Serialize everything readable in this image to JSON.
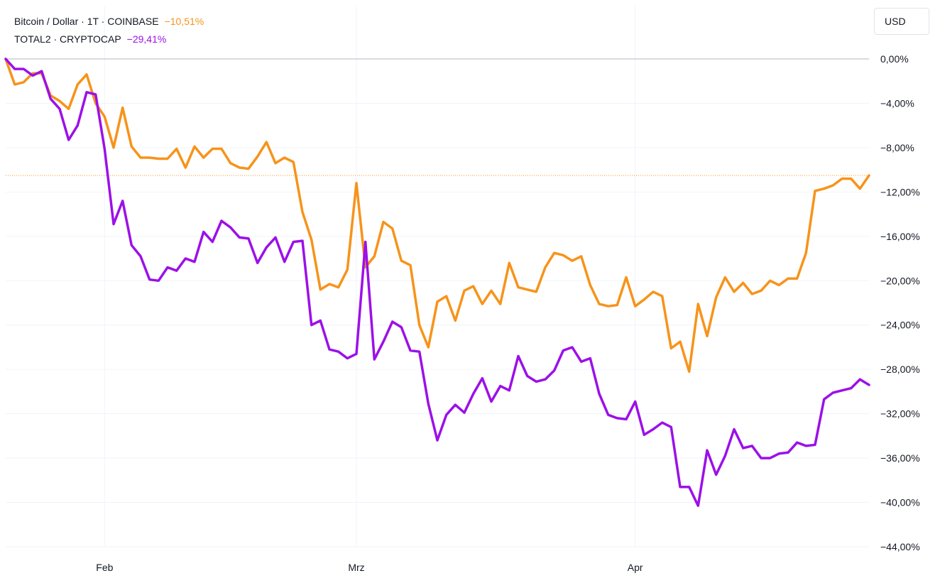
{
  "legend": {
    "series": [
      {
        "label": "Bitcoin / Dollar · 1T · COINBASE",
        "change": "−10,51%",
        "color": "#f7931a"
      },
      {
        "label": "TOTAL2 · CRYPTOCAP",
        "change": "−29,41%",
        "color": "#9c10e8"
      }
    ]
  },
  "toolbar": {
    "currency": "USD"
  },
  "colors": {
    "grid": "#f0f3fa",
    "zero_line": "#b2b5be",
    "axis_text": "#131722",
    "marker_line": "#f7931a"
  },
  "chart_data": {
    "type": "line",
    "y_unit": "%",
    "ylim": [
      -44,
      0
    ],
    "y_ticks": [
      0,
      -4,
      -8,
      -12,
      -16,
      -20,
      -24,
      -28,
      -32,
      -36,
      -40,
      -44
    ],
    "y_tick_labels": [
      "0,00%",
      "−4,00%",
      "−8,00%",
      "−12,00%",
      "−16,00%",
      "−20,00%",
      "−24,00%",
      "−28,00%",
      "−32,00%",
      "−36,00%",
      "−40,00%",
      "−44,00%"
    ],
    "x_ticks": [
      {
        "label": "Feb",
        "index": 11
      },
      {
        "label": "Mrz",
        "index": 39
      },
      {
        "label": "Apr",
        "index": 70
      }
    ],
    "grid": true,
    "last_value_line": -10.51,
    "series": [
      {
        "name": "Bitcoin / Dollar · 1T · COINBASE",
        "color": "#f7931a",
        "values": [
          0,
          -2.3,
          -2.1,
          -1.3,
          -1.3,
          -3.3,
          -3.8,
          -4.5,
          -2.3,
          -1.4,
          -4,
          -5.2,
          -8,
          -4.4,
          -7.9,
          -8.9,
          -8.9,
          -9,
          -9,
          -8.1,
          -9.8,
          -7.9,
          -8.9,
          -8.1,
          -8.1,
          -9.4,
          -9.8,
          -9.9,
          -8.8,
          -7.5,
          -9.4,
          -8.9,
          -9.3,
          -13.8,
          -16.3,
          -20.8,
          -20.3,
          -20.6,
          -19,
          -11.2,
          -18.8,
          -17.8,
          -14.7,
          -15.3,
          -18.2,
          -18.6,
          -24,
          -26,
          -21.9,
          -21.4,
          -23.6,
          -20.9,
          -20.5,
          -22.1,
          -20.9,
          -22.1,
          -18.4,
          -20.6,
          -20.8,
          -21,
          -18.8,
          -17.5,
          -17.7,
          -18.2,
          -17.8,
          -20.4,
          -22.1,
          -22.3,
          -22.2,
          -19.7,
          -22.3,
          -21.7,
          -21,
          -21.4,
          -26.1,
          -25.5,
          -28.2,
          -22.1,
          -25,
          -21.5,
          -19.7,
          -21,
          -20.2,
          -21.2,
          -20.9,
          -20,
          -20.4,
          -19.8,
          -19.8,
          -17.5,
          -11.9,
          -11.7,
          -11.4,
          -10.8,
          -10.8,
          -11.7,
          -10.51
        ]
      },
      {
        "name": "TOTAL2 · CRYPTOCAP",
        "color": "#9c10e8",
        "values": [
          0,
          -0.9,
          -0.9,
          -1.5,
          -1.1,
          -3.6,
          -4.5,
          -7.3,
          -6,
          -3,
          -3.2,
          -8.1,
          -14.9,
          -12.8,
          -16.8,
          -17.8,
          -19.9,
          -20,
          -18.8,
          -19.1,
          -18,
          -18.3,
          -15.6,
          -16.5,
          -14.6,
          -15.2,
          -16.1,
          -16.2,
          -18.4,
          -17,
          -16.1,
          -18.3,
          -16.5,
          -16.4,
          -24,
          -23.6,
          -26.2,
          -26.4,
          -27,
          -26.6,
          -16.5,
          -27.1,
          -25.5,
          -23.7,
          -24.2,
          -26.3,
          -26.4,
          -31.1,
          -34.4,
          -32.1,
          -31.2,
          -31.9,
          -30.2,
          -28.8,
          -30.9,
          -29.5,
          -29.9,
          -26.8,
          -28.6,
          -29.1,
          -28.9,
          -28.1,
          -26.3,
          -26,
          -27.3,
          -27,
          -30.2,
          -32.1,
          -32.4,
          -32.5,
          -30.9,
          -33.9,
          -33.4,
          -32.8,
          -33.2,
          -38.6,
          -38.6,
          -40.3,
          -35.3,
          -37.5,
          -35.8,
          -33.4,
          -35.1,
          -34.9,
          -36,
          -36,
          -35.6,
          -35.5,
          -34.6,
          -34.9,
          -34.8,
          -30.7,
          -30.1,
          -29.9,
          -29.7,
          -28.9,
          -29.4
        ]
      }
    ]
  }
}
